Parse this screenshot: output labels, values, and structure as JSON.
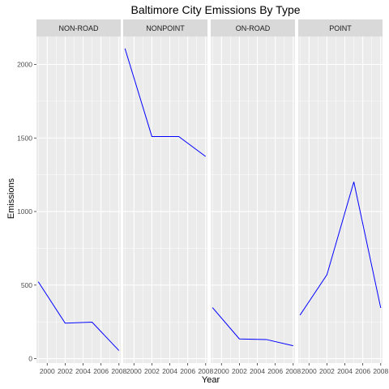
{
  "chart_data": {
    "type": "line",
    "title": "Baltimore City Emissions By Type",
    "xlabel": "Year",
    "ylabel": "Emissions",
    "x_ticks": [
      2000,
      2002,
      2004,
      2006,
      2008
    ],
    "x_tick_labels": [
      "2000",
      "2002",
      "2004",
      "2006",
      "2008"
    ],
    "y_ticks": [
      0,
      500,
      1000,
      1500,
      2000
    ],
    "y_tick_labels": [
      "0",
      "500",
      "1000",
      "1500",
      "2000"
    ],
    "xlim": [
      1998.8,
      2008.2
    ],
    "ylim": [
      -30,
      2190
    ],
    "x": [
      1999,
      2002,
      2005,
      2008
    ],
    "line_color": "#0000ff",
    "panel_bg": "#ebebeb",
    "strip_bg": "#d9d9d9",
    "grid_color": "#ffffff",
    "grid": true,
    "facets": [
      {
        "name": "NON-ROAD",
        "values": [
          523,
          241,
          248,
          55
        ]
      },
      {
        "name": "NONPOINT",
        "values": [
          2108,
          1510,
          1510,
          1374
        ]
      },
      {
        "name": "ON-ROAD",
        "values": [
          347,
          134,
          130,
          88
        ]
      },
      {
        "name": "POINT",
        "values": [
          296,
          570,
          1202,
          345
        ]
      }
    ]
  }
}
